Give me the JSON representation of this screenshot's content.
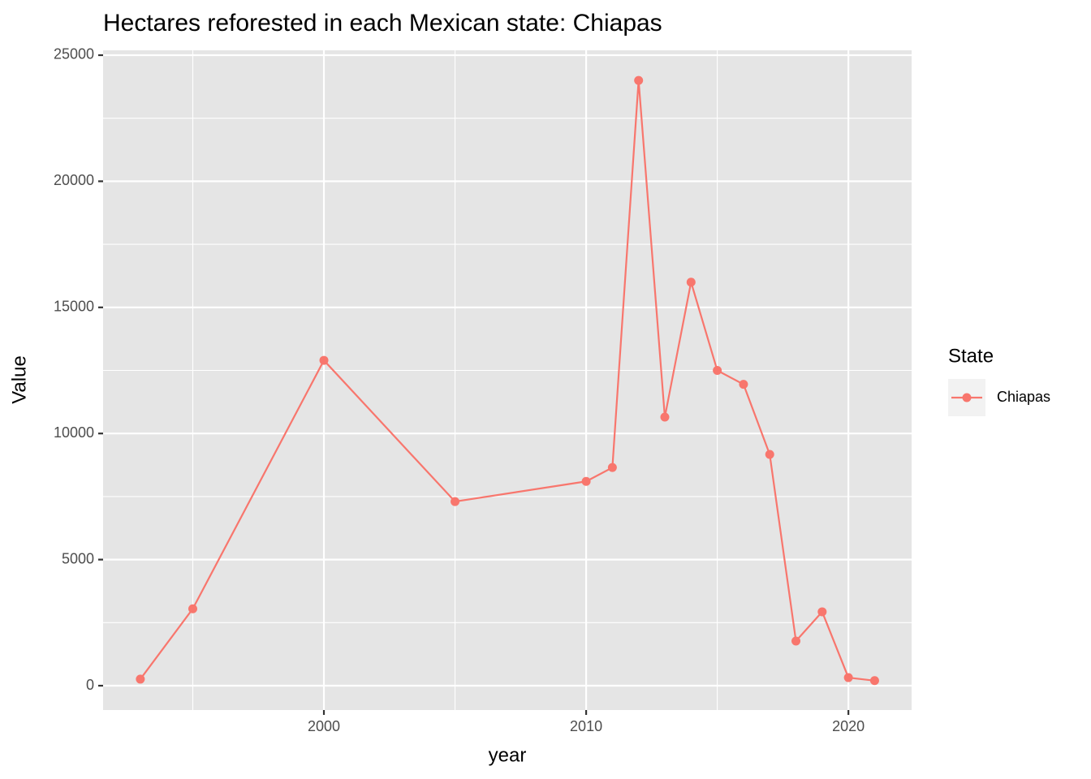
{
  "chart_data": {
    "type": "line",
    "title": "Hectares reforested in each Mexican state: Chiapas",
    "x_label": "year",
    "y_label": "Value",
    "legend_title": "State",
    "legend_position": "right",
    "grid": true,
    "x": [
      1993,
      1995,
      2000,
      2005,
      2010,
      2011,
      2012,
      2013,
      2014,
      2015,
      2016,
      2017,
      2018,
      2019,
      2020,
      2021
    ],
    "series": [
      {
        "name": "Chiapas",
        "color": "#F8766D",
        "values": [
          260,
          3050,
          12900,
          7300,
          8100,
          8650,
          24000,
          10650,
          16000,
          12500,
          11950,
          9170,
          1770,
          2930,
          320,
          200
        ]
      }
    ],
    "xlim": [
      1991.58,
      2022.41
    ],
    "xticks": [
      2000,
      2010,
      2020
    ],
    "xminor": [
      1995,
      2005,
      2015
    ],
    "ylim": [
      -965,
      25193
    ],
    "yticks": [
      0,
      5000,
      10000,
      15000,
      20000,
      25000
    ],
    "yminor": [
      2500,
      7500,
      12500,
      17500,
      22500
    ]
  }
}
